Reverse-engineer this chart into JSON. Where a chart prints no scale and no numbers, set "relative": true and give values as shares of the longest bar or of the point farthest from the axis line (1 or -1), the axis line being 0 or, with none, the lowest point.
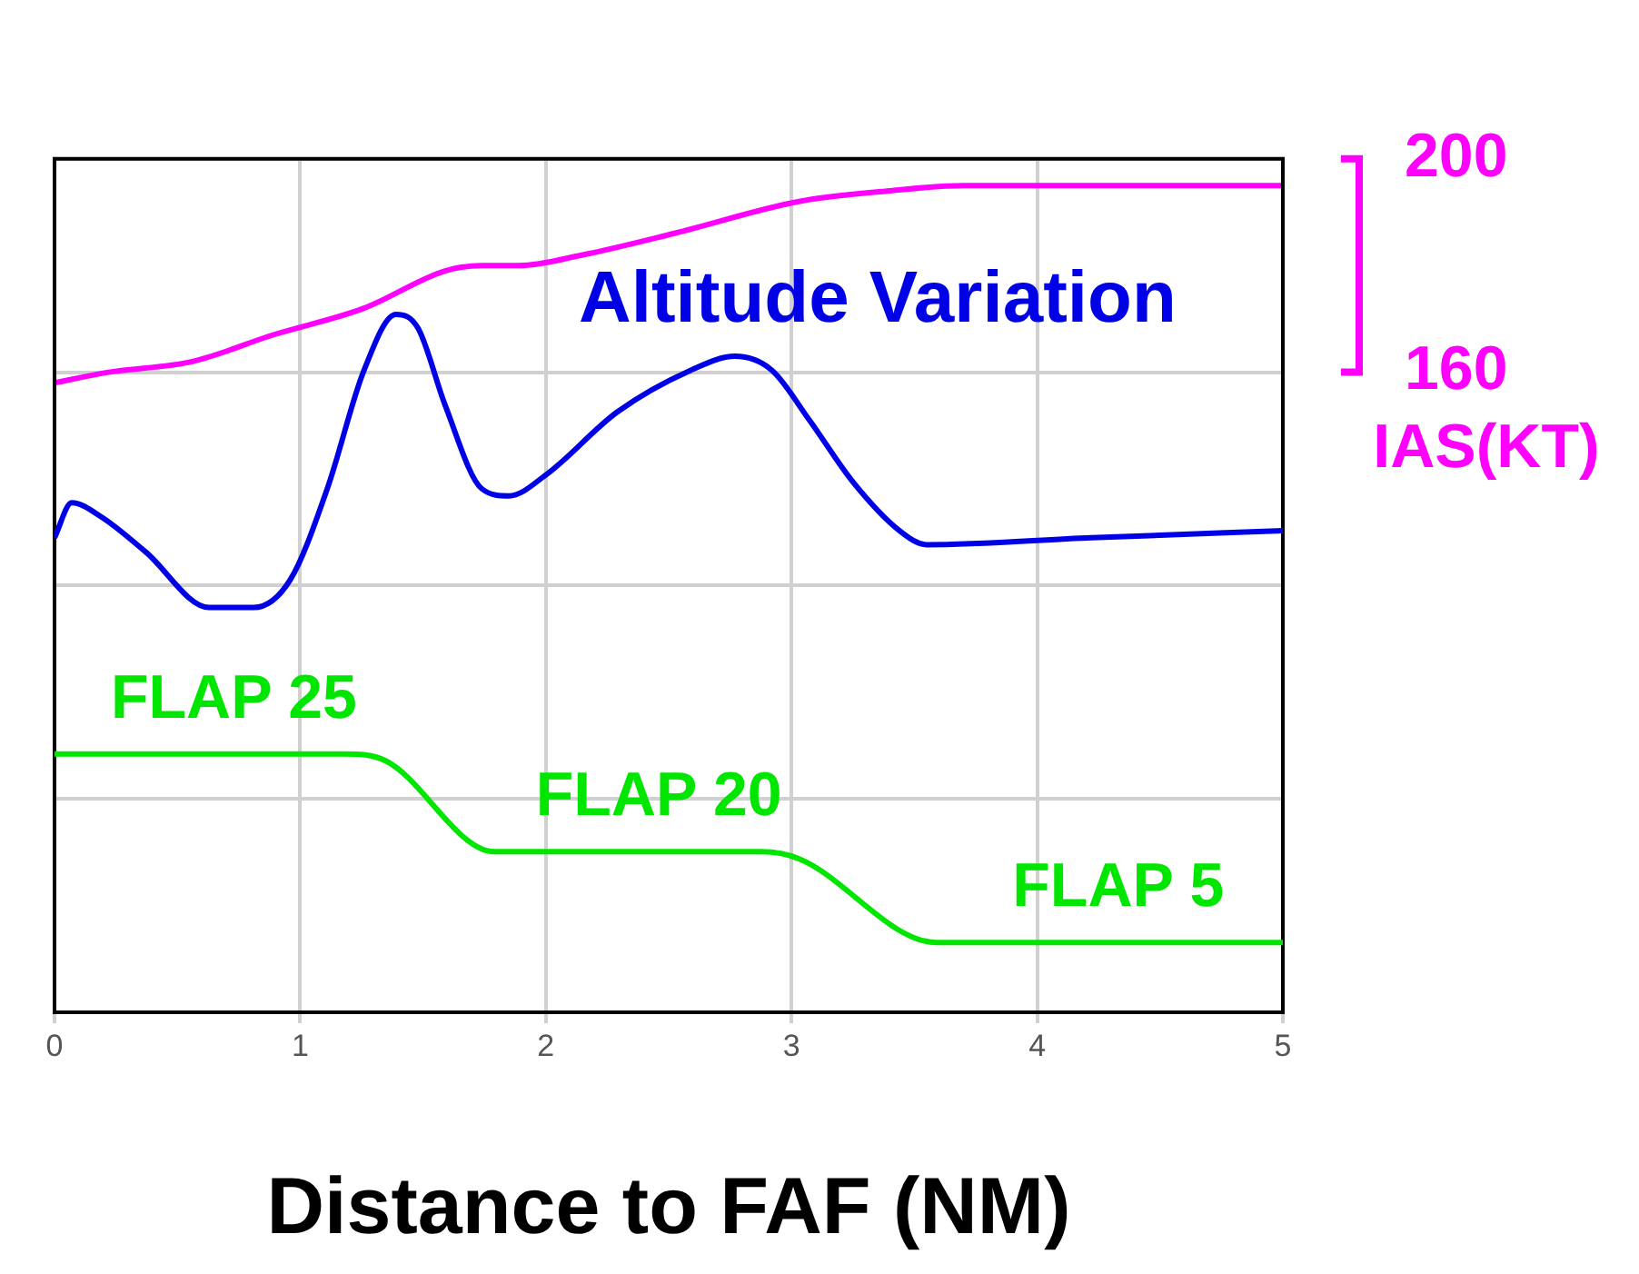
{
  "chart_data": [
    {
      "type": "line",
      "xlabel": "Distance to FAF (NM)",
      "ylabel": "IAS(KT)",
      "xlim": [
        0,
        5
      ],
      "xticks": [
        0,
        1,
        2,
        3,
        4,
        5
      ],
      "ylim": [
        40,
        200
      ],
      "yticks": [
        {
          "value": 80,
          "label": null
        },
        {
          "value": 120,
          "label": null
        },
        160,
        200
      ],
      "grid": true,
      "marker": "none",
      "line_style": "solid",
      "series": [
        {
          "color": "#ff00ff",
          "x": [
            0,
            0.22,
            0.56,
            0.89,
            1.26,
            1.59,
            1.74,
            1.89,
            2.15,
            2.52,
            3.03,
            3.4,
            3.7,
            5
          ],
          "values": [
            158,
            160,
            162,
            167,
            172,
            179,
            180,
            180,
            182,
            186,
            192,
            194,
            195,
            195
          ]
        }
      ]
    },
    {
      "type": "line",
      "relative": true,
      "xlim": [
        0,
        5
      ],
      "tick_labels": false,
      "marker": "none",
      "line_style": "solid",
      "series": [
        {
          "name": "Altitude Variation",
          "color": "#0000e6",
          "x": [
            0,
            0.07,
            0.19,
            0.37,
            0.63,
            0.81,
            0.96,
            1.11,
            1.26,
            1.39,
            1.48,
            1.59,
            1.74,
            1.85,
            2.0,
            2.29,
            2.59,
            2.77,
            2.92,
            3.07,
            3.25,
            3.44,
            3.55,
            4.22,
            5
          ],
          "values": [
            0.68,
            0.73,
            0.71,
            0.66,
            0.58,
            0.58,
            0.62,
            0.75,
            0.92,
            1.0,
            0.98,
            0.87,
            0.75,
            0.74,
            0.77,
            0.86,
            0.92,
            0.94,
            0.92,
            0.85,
            0.76,
            0.69,
            0.67,
            0.68,
            0.69
          ]
        },
        {
          "color": "#00e600",
          "x": [
            0,
            1.18,
            1.35,
            1.79,
            2.88,
            3.03,
            3.59,
            5
          ],
          "values": [
            0.37,
            0.37,
            0.36,
            0.23,
            0.23,
            0.22,
            0.1,
            0.1
          ]
        }
      ],
      "annotations": [
        {
          "text": "FLAP 25",
          "x": 0.73,
          "y": 0.37
        },
        {
          "text": "FLAP 20",
          "x": 2.46,
          "y": 0.23
        },
        {
          "text": "FLAP 5",
          "x": 4.33,
          "y": 0.1
        }
      ]
    }
  ]
}
